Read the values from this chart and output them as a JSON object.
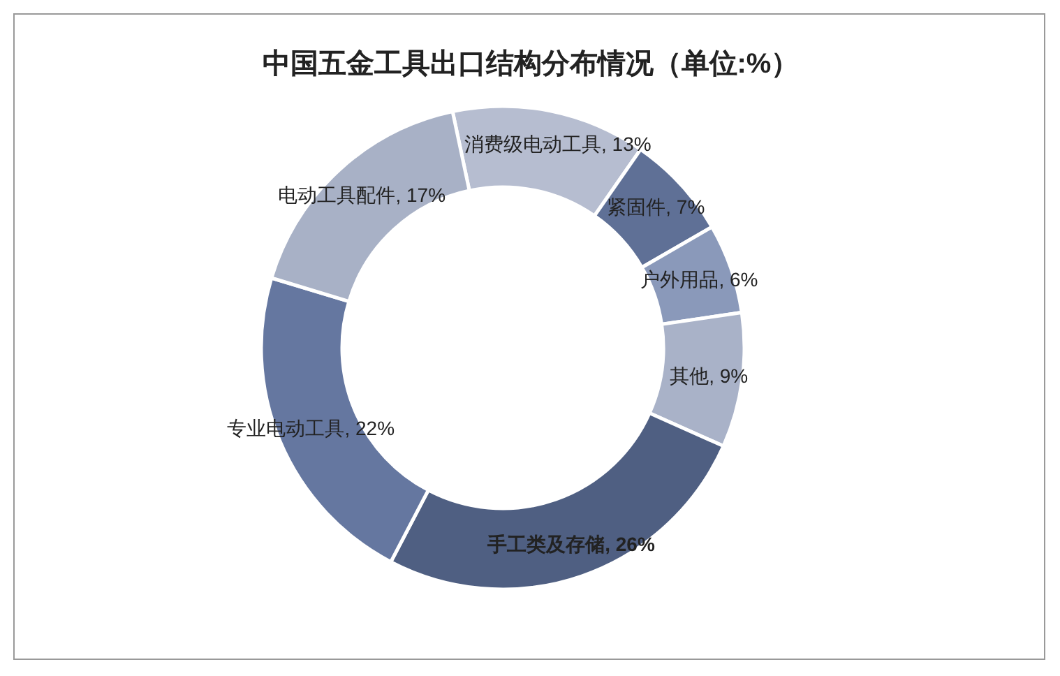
{
  "chart_data": {
    "type": "donut",
    "title": "中国五金工具出口结构分布情况（单位:%）",
    "categories": [
      "消费级电动工具",
      "紧固件",
      "户外用品",
      "其他",
      "手工类及存储",
      "专业电动工具",
      "电动工具配件"
    ],
    "values": [
      13,
      7,
      6,
      9,
      26,
      22,
      17
    ],
    "value_labels": [
      "13%",
      "7%",
      "6%",
      "9%",
      "26%",
      "22%",
      "17%"
    ],
    "colors": [
      "#b6bdd0",
      "#5f7096",
      "#8a99ba",
      "#a9b2c8",
      "#4f5f82",
      "#6577a0",
      "#a8b1c6"
    ]
  }
}
